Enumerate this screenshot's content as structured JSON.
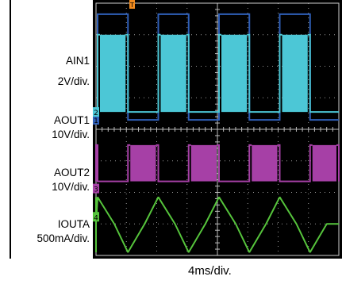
{
  "chart_data": {
    "type": "line",
    "title": "",
    "xlabel": "4ms/div.",
    "ylabel": "",
    "grid": true,
    "grid_style": "dotted",
    "background": "#000000",
    "x_divisions": 8,
    "y_divisions": 8,
    "channels": [
      {
        "name": "AIN1",
        "scale": "2V/div.",
        "marker": "1",
        "color": "#2f5fb8",
        "signal": "square",
        "low_level_div": 3.7,
        "high_level_div": 0.35
      },
      {
        "name": "AOUT1",
        "scale": "10V/div.",
        "marker": "2",
        "color": "#4cc7d6",
        "signal": "pwm-burst on AIN1 high",
        "low_level_div": 3.45,
        "high_level_div": 1.0
      },
      {
        "name": "AOUT2",
        "scale": "10V/div.",
        "marker": "3",
        "color": "#a640a6",
        "signal": "pwm-burst on AIN1 low",
        "low_level_div": 5.65,
        "high_level_div": 4.5
      },
      {
        "name": "IOUTA",
        "scale": "500mA/div.",
        "marker": "4",
        "color": "#56c43c",
        "signal": "bidirectional current, 3 levels",
        "levels_div": [
          6.15,
          7.0,
          7.9
        ]
      }
    ],
    "period_ms": 8,
    "duty": 0.5,
    "time_per_div": "4ms/div."
  },
  "labels": {
    "ch1_name": "AIN1",
    "ch1_scale": "2V/div.",
    "ch2_name": "AOUT1",
    "ch2_scale": "10V/div.",
    "ch3_name": "AOUT2",
    "ch3_scale": "10V/div.",
    "ch4_name": "IOUTA",
    "ch4_scale": "500mA/div."
  },
  "markers": {
    "ch1": "1",
    "ch2": "2",
    "ch3": "3",
    "ch4": "4",
    "trigger": "T"
  }
}
